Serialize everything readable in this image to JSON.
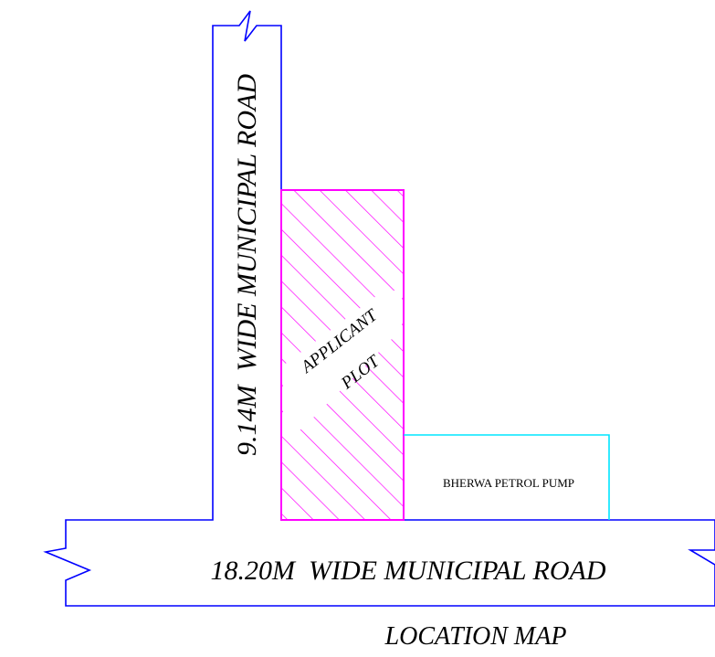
{
  "diagram": {
    "vertical_road_label": "9.14M  WIDE MUNICIPAL ROAD",
    "horizontal_road_label": "18.20M  WIDE MUNICIPAL ROAD",
    "plot_label_line1": "APPLICANT",
    "plot_label_line2": "PLOT",
    "petrol_pump_label": "BHERWA PETROL PUMP",
    "caption": "LOCATION MAP",
    "colors": {
      "road": "#0000ff",
      "plot": "#ff00ff",
      "petrol_pump": "#00e5ff",
      "text": "#000000"
    }
  }
}
